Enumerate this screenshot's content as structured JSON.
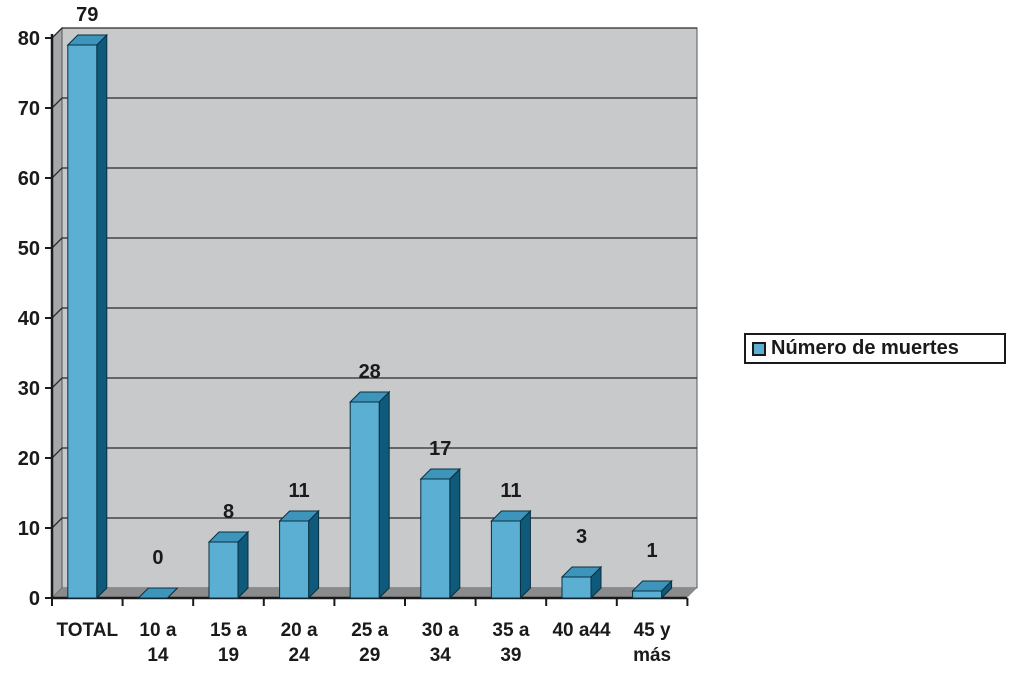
{
  "chart_data": {
    "type": "bar",
    "categories": [
      [
        "TOTAL"
      ],
      [
        "10 a",
        "14"
      ],
      [
        "15 a",
        "19"
      ],
      [
        "20 a",
        "24"
      ],
      [
        "25 a",
        "29"
      ],
      [
        "30 a",
        "34"
      ],
      [
        "35 a",
        "39"
      ],
      [
        "40 a44"
      ],
      [
        "45 y",
        "más"
      ]
    ],
    "series": [
      {
        "name": "Número de muertes",
        "values": [
          79,
          0,
          8,
          11,
          28,
          17,
          11,
          3,
          1
        ]
      }
    ],
    "ylim": [
      0,
      80
    ],
    "yticks": [
      0,
      10,
      20,
      30,
      40,
      50,
      60,
      70,
      80
    ],
    "grid": true,
    "legend_position": "right",
    "data_labels": true,
    "three_d": true,
    "colors": {
      "bar_front": "#5aafd3",
      "bar_side": "#0f5a7a",
      "bar_top": "#3d95bc",
      "plot_back": "#c8c9cb",
      "plot_wall": "#a6a7a9",
      "gridline": "#2a2a2a"
    }
  },
  "legend": {
    "label": "Número de muertes"
  }
}
